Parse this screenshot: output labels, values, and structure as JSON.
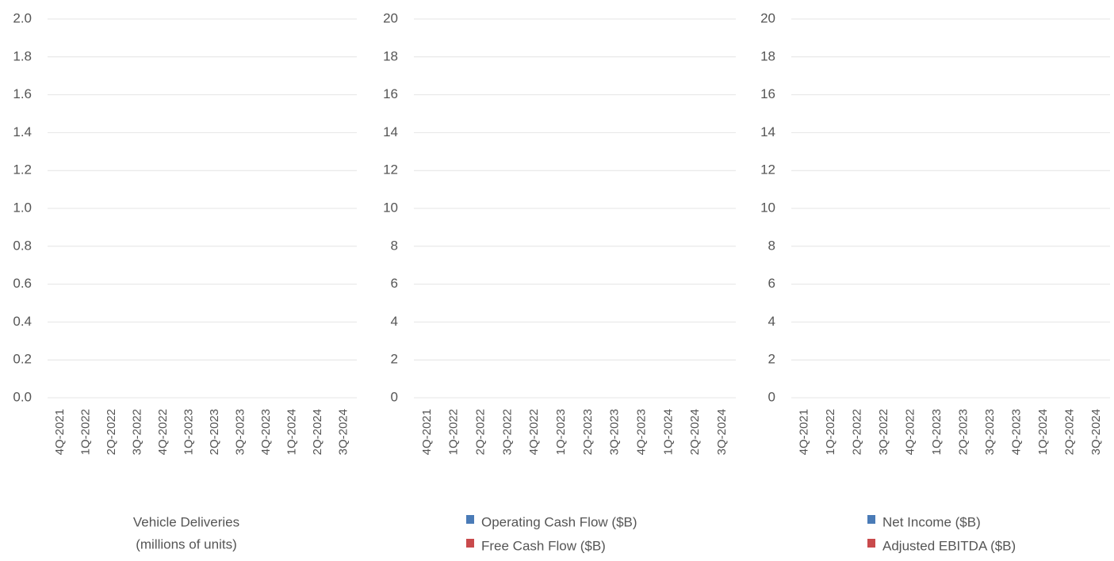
{
  "chart_data": [
    {
      "type": "bar",
      "categories": [
        "4Q-2021",
        "1Q-2022",
        "2Q-2022",
        "3Q-2022",
        "4Q-2022",
        "1Q-2023",
        "2Q-2023",
        "3Q-2023",
        "4Q-2023",
        "1Q-2024",
        "2Q-2024",
        "3Q-2024"
      ],
      "ylim": [
        0,
        2
      ],
      "yticks": [
        {
          "value": 0,
          "label": "0.0"
        },
        0.2,
        0.4,
        0.6,
        0.8,
        {
          "value": 1,
          "label": "1.0"
        },
        1.2,
        1.4,
        1.6,
        1.8,
        {
          "value": 2,
          "label": "2.0"
        }
      ],
      "grid": true,
      "xlabel": [
        "Vehicle Deliveries",
        "(millions of units)"
      ]
    },
    {
      "type": "bar",
      "categories": [
        "4Q-2021",
        "1Q-2022",
        "2Q-2022",
        "3Q-2022",
        "4Q-2022",
        "1Q-2023",
        "2Q-2023",
        "3Q-2023",
        "4Q-2023",
        "1Q-2024",
        "2Q-2024",
        "3Q-2024"
      ],
      "ylim": [
        0,
        20
      ],
      "yticks": [
        0,
        2,
        4,
        6,
        8,
        10,
        12,
        14,
        16,
        18,
        20
      ],
      "grid": true,
      "series": [
        {
          "name": "Operating Cash Flow ($B)",
          "color": "#4a7bb7",
          "values": [
            null,
            null,
            null,
            null,
            null,
            null,
            null,
            null,
            null,
            null,
            null,
            null
          ]
        },
        {
          "name": "Free Cash Flow ($B)",
          "color": "#c94a4c",
          "values": [
            null,
            null,
            null,
            null,
            null,
            null,
            null,
            null,
            null,
            null,
            null,
            null
          ]
        }
      ]
    },
    {
      "type": "bar",
      "categories": [
        "4Q-2021",
        "1Q-2022",
        "2Q-2022",
        "3Q-2022",
        "4Q-2022",
        "1Q-2023",
        "2Q-2023",
        "3Q-2023",
        "4Q-2023",
        "1Q-2024",
        "2Q-2024",
        "3Q-2024"
      ],
      "ylim": [
        0,
        20
      ],
      "yticks": [
        0,
        2,
        4,
        6,
        8,
        10,
        12,
        14,
        16,
        18,
        20
      ],
      "grid": true,
      "series": [
        {
          "name": "Net Income ($B)",
          "color": "#4a7bb7",
          "values": [
            null,
            null,
            null,
            null,
            null,
            null,
            null,
            null,
            null,
            null,
            null,
            null
          ]
        },
        {
          "name": "Adjusted EBITDA ($B)",
          "color": "#c94a4c",
          "values": [
            null,
            null,
            null,
            null,
            null,
            null,
            null,
            null,
            null,
            null,
            null,
            null
          ]
        }
      ]
    }
  ]
}
